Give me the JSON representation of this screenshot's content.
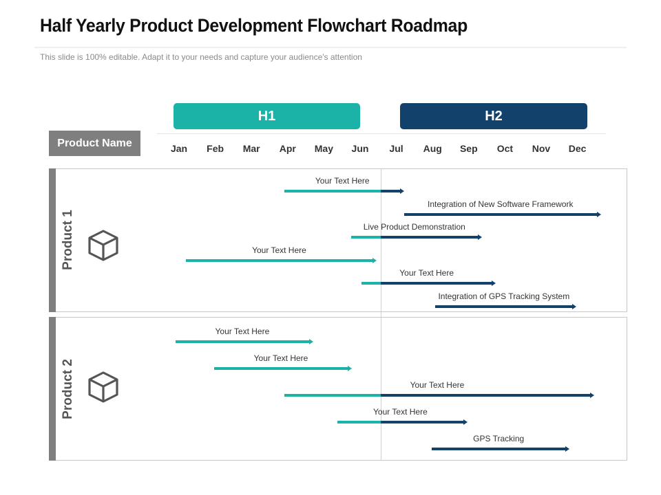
{
  "header": {
    "title": "Half Yearly Product Development Flowchart Roadmap",
    "subtitle": "This slide is 100% editable. Adapt it to your needs and capture your audience's attention"
  },
  "colors": {
    "teal": "#1bb2a8",
    "navy": "#12426b",
    "grey": "#7f7f7f"
  },
  "timeline": {
    "halves": [
      {
        "label": "H1",
        "color": "#1bb2a8"
      },
      {
        "label": "H2",
        "color": "#12426b"
      }
    ],
    "months": [
      "Jan",
      "Feb",
      "Mar",
      "Apr",
      "May",
      "Jun",
      "Jul",
      "Aug",
      "Sep",
      "Oct",
      "Nov",
      "Dec"
    ],
    "product_name_label": "Product Name"
  },
  "products": [
    {
      "label": "Product 1",
      "icon": "cube-icon"
    },
    {
      "label": "Product 2",
      "icon": "cube-icon"
    }
  ],
  "chart_data": {
    "type": "gantt",
    "unit": "months (0 = start of Jan, 12 = end of Dec)",
    "split_month": 6,
    "tasks": [
      {
        "product": 0,
        "label": "Your Text Here",
        "start": 3.1,
        "end": 6.4
      },
      {
        "product": 0,
        "label": "Integration of New Software Framework",
        "start": 6.5,
        "end": 12.0
      },
      {
        "product": 0,
        "label": "Live Product Demonstration",
        "start": 5.0,
        "end": 8.6
      },
      {
        "product": 0,
        "label": "Your Text Here",
        "start": 0.3,
        "end": 5.6
      },
      {
        "product": 0,
        "label": "Your Text Here",
        "start": 5.3,
        "end": 9.0
      },
      {
        "product": 0,
        "label": "Integration of GPS Tracking System",
        "start": 7.4,
        "end": 11.3
      },
      {
        "product": 1,
        "label": "Your Text Here",
        "start": 0.0,
        "end": 3.8
      },
      {
        "product": 1,
        "label": "Your Text Here",
        "start": 1.1,
        "end": 4.9
      },
      {
        "product": 1,
        "label": "Your Text Here",
        "start": 3.1,
        "end": 11.8
      },
      {
        "product": 1,
        "label": "Your Text Here",
        "start": 4.6,
        "end": 8.2
      },
      {
        "product": 1,
        "label": "GPS Tracking",
        "start": 7.3,
        "end": 11.1
      }
    ]
  }
}
